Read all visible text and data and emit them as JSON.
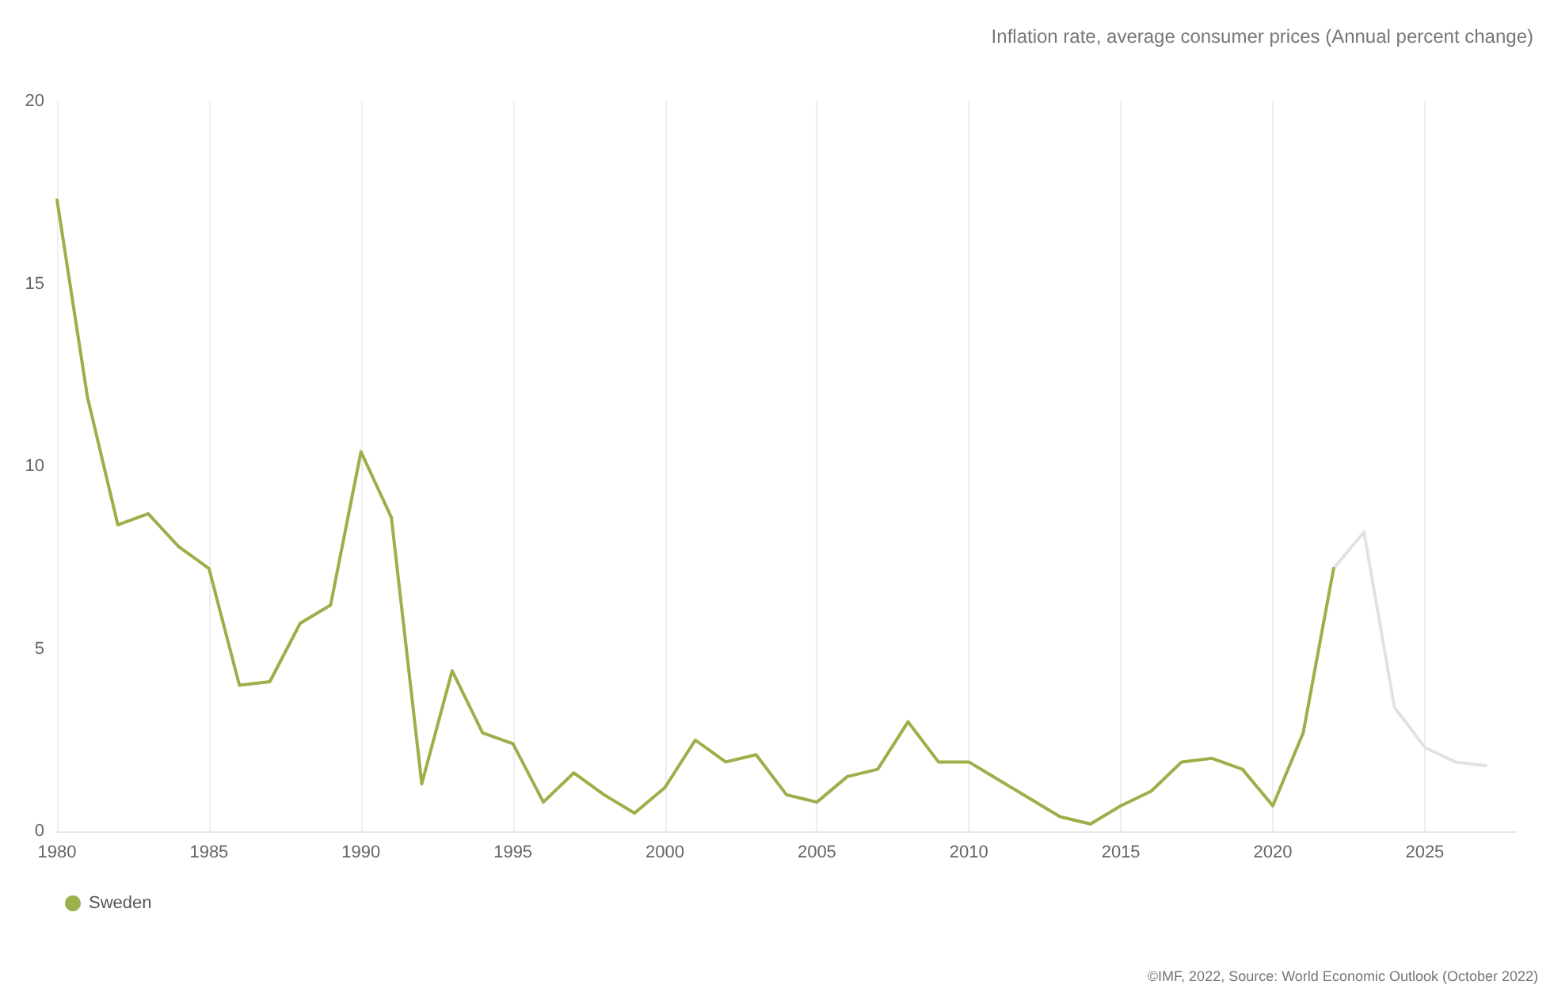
{
  "chart_data": {
    "type": "line",
    "title": "Inflation rate, average consumer prices (Annual percent change)",
    "annotations": [
      "©IMF, 2022, Source: World Economic Outlook (October 2022)"
    ],
    "series": [
      {
        "name": "Sweden",
        "color": "#9bb04a",
        "x": [
          1980,
          1981,
          1982,
          1983,
          1984,
          1985,
          1986,
          1987,
          1988,
          1989,
          1990,
          1991,
          1992,
          1993,
          1994,
          1995,
          1996,
          1997,
          1998,
          1999,
          2000,
          2001,
          2002,
          2003,
          2004,
          2005,
          2006,
          2007,
          2008,
          2009,
          2010,
          2011,
          2012,
          2013,
          2014,
          2015,
          2016,
          2017,
          2018,
          2019,
          2020,
          2021,
          2022
        ],
        "values": [
          17.3,
          11.9,
          8.4,
          8.7,
          7.8,
          7.2,
          4.0,
          4.1,
          5.7,
          6.2,
          10.4,
          8.6,
          1.3,
          4.4,
          2.7,
          2.4,
          0.8,
          1.6,
          1.0,
          0.5,
          1.2,
          2.5,
          1.9,
          2.1,
          1.0,
          0.8,
          1.5,
          1.7,
          3.0,
          1.9,
          1.9,
          1.4,
          0.9,
          0.4,
          0.2,
          0.7,
          1.1,
          1.9,
          2.0,
          1.7,
          0.7,
          2.7,
          7.2
        ]
      },
      {
        "color": "#e2e2e2",
        "x": [
          2022,
          2023,
          2024,
          2025,
          2026,
          2027
        ],
        "values": [
          7.2,
          8.2,
          3.4,
          2.3,
          1.9,
          1.8
        ]
      }
    ],
    "xlim": [
      1980,
      2028
    ],
    "xticks": [
      1980,
      1985,
      1990,
      1995,
      2000,
      2005,
      2010,
      2015,
      2020,
      2025
    ],
    "ylim": [
      0,
      20
    ],
    "yticks": [
      0,
      5,
      10,
      15,
      20
    ],
    "grid": "x",
    "legend": "bottom left",
    "marker": "none",
    "line_style": "solid"
  }
}
